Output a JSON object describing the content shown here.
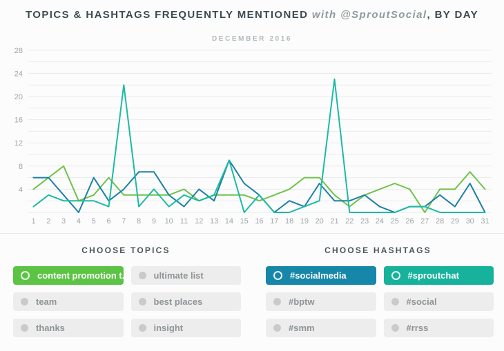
{
  "header": {
    "title_main": "TOPICS & HASHTAGS FREQUENTLY MENTIONED",
    "title_with": " with @SproutSocial",
    "title_suffix": ", BY DAY",
    "subtitle": "DECEMBER 2016"
  },
  "chart_data": {
    "type": "line",
    "title": "DECEMBER 2016",
    "categories": [
      "1",
      "2",
      "3",
      "4",
      "5",
      "6",
      "7",
      "8",
      "9",
      "10",
      "11",
      "12",
      "13",
      "14",
      "15",
      "16",
      "17",
      "18",
      "19",
      "20",
      "21",
      "22",
      "23",
      "24",
      "25",
      "26",
      "27",
      "28",
      "29",
      "30",
      "31"
    ],
    "series": [
      {
        "name": "content promotion t..",
        "color": "#6fc24b",
        "values": [
          4,
          6,
          8,
          2,
          3,
          6,
          3,
          3,
          3,
          3,
          4,
          2,
          3,
          3,
          3,
          2,
          3,
          4,
          6,
          6,
          3,
          1,
          3,
          4,
          5,
          4,
          0,
          4,
          4,
          7,
          4
        ]
      },
      {
        "name": "#socialmedia",
        "color": "#1b80a7",
        "values": [
          6,
          6,
          3,
          0,
          6,
          2,
          4,
          7,
          7,
          3,
          1,
          4,
          2,
          9,
          5,
          3,
          0,
          2,
          1,
          5,
          2,
          2,
          3,
          1,
          0,
          1,
          1,
          3,
          1,
          5,
          0
        ]
      },
      {
        "name": "#sproutchat",
        "color": "#1cbaa5",
        "values": [
          1,
          3,
          2,
          2,
          2,
          1,
          22,
          1,
          4,
          1,
          3,
          2,
          3,
          9,
          0,
          3,
          0,
          0,
          1,
          2,
          23,
          0,
          0,
          0,
          0,
          1,
          1,
          0,
          0,
          0,
          0
        ]
      }
    ],
    "xlabel": "",
    "ylabel": "",
    "ylim": [
      0,
      29
    ],
    "yticks_labeled": [
      4,
      8,
      12,
      16,
      20,
      24,
      28
    ],
    "grid_step": 2,
    "grid": true,
    "legend_position": "none"
  },
  "topics": {
    "heading": "CHOOSE TOPICS",
    "items": [
      {
        "label": "content promotion t..",
        "selected": true,
        "color": "#5cc445"
      },
      {
        "label": "ultimate list",
        "selected": false,
        "color": ""
      },
      {
        "label": "team",
        "selected": false,
        "color": ""
      },
      {
        "label": "best places",
        "selected": false,
        "color": ""
      },
      {
        "label": "thanks",
        "selected": false,
        "color": ""
      },
      {
        "label": "insight",
        "selected": false,
        "color": ""
      }
    ]
  },
  "hashtags": {
    "heading": "CHOOSE HASHTAGS",
    "items": [
      {
        "label": "#socialmedia",
        "selected": true,
        "color": "#1787a9"
      },
      {
        "label": "#sproutchat",
        "selected": true,
        "color": "#16b29c"
      },
      {
        "label": "#bptw",
        "selected": false,
        "color": ""
      },
      {
        "label": "#social",
        "selected": false,
        "color": ""
      },
      {
        "label": "#smm",
        "selected": false,
        "color": ""
      },
      {
        "label": "#rrss",
        "selected": false,
        "color": ""
      }
    ]
  }
}
